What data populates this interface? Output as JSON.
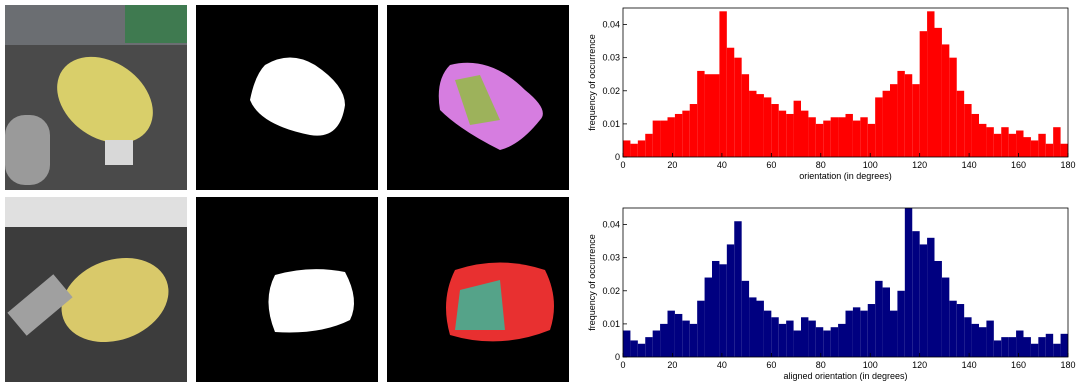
{
  "chart_data": [
    {
      "type": "histogram",
      "xlabel": "orientation (in degrees)",
      "ylabel": "frequency of occurrence",
      "color": "#ff0000",
      "bins": [
        0,
        3,
        6,
        9,
        12,
        15,
        18,
        21,
        24,
        27,
        30,
        33,
        36,
        39,
        42,
        45,
        48,
        51,
        54,
        57,
        60,
        63,
        66,
        69,
        72,
        75,
        78,
        81,
        84,
        87,
        90,
        93,
        96,
        99,
        102,
        105,
        108,
        111,
        114,
        117,
        120,
        123,
        126,
        129,
        132,
        135,
        138,
        141,
        144,
        147,
        150,
        153,
        156,
        159,
        162,
        165,
        168,
        171,
        174,
        177,
        180
      ],
      "values": [
        0.005,
        0.004,
        0.005,
        0.007,
        0.011,
        0.011,
        0.012,
        0.013,
        0.014,
        0.016,
        0.026,
        0.025,
        0.025,
        0.044,
        0.033,
        0.03,
        0.025,
        0.02,
        0.019,
        0.018,
        0.016,
        0.014,
        0.013,
        0.017,
        0.014,
        0.012,
        0.01,
        0.011,
        0.012,
        0.012,
        0.013,
        0.011,
        0.012,
        0.01,
        0.018,
        0.02,
        0.022,
        0.026,
        0.025,
        0.022,
        0.038,
        0.044,
        0.039,
        0.034,
        0.03,
        0.02,
        0.016,
        0.013,
        0.01,
        0.009,
        0.007,
        0.009,
        0.007,
        0.008,
        0.006,
        0.005,
        0.007,
        0.004,
        0.009,
        0.004
      ],
      "xlim": [
        0,
        180
      ],
      "xticks": [
        0,
        20,
        40,
        60,
        80,
        100,
        120,
        140,
        160,
        180
      ],
      "ylim": [
        0,
        0.045
      ],
      "yticks": [
        0,
        0.01,
        0.02,
        0.03,
        0.04
      ]
    },
    {
      "type": "histogram",
      "xlabel": "aligned orientation (in degrees)",
      "ylabel": "frequency of occurrence",
      "color": "#000080",
      "bins": [
        0,
        3,
        6,
        9,
        12,
        15,
        18,
        21,
        24,
        27,
        30,
        33,
        36,
        39,
        42,
        45,
        48,
        51,
        54,
        57,
        60,
        63,
        66,
        69,
        72,
        75,
        78,
        81,
        84,
        87,
        90,
        93,
        96,
        99,
        102,
        105,
        108,
        111,
        114,
        117,
        120,
        123,
        126,
        129,
        132,
        135,
        138,
        141,
        144,
        147,
        150,
        153,
        156,
        159,
        162,
        165,
        168,
        171,
        174,
        177,
        180
      ],
      "values": [
        0.008,
        0.005,
        0.004,
        0.006,
        0.008,
        0.01,
        0.014,
        0.013,
        0.011,
        0.01,
        0.017,
        0.024,
        0.029,
        0.028,
        0.034,
        0.041,
        0.023,
        0.018,
        0.017,
        0.014,
        0.012,
        0.01,
        0.011,
        0.008,
        0.012,
        0.011,
        0.009,
        0.008,
        0.009,
        0.01,
        0.014,
        0.015,
        0.014,
        0.016,
        0.023,
        0.021,
        0.014,
        0.02,
        0.045,
        0.038,
        0.034,
        0.036,
        0.029,
        0.024,
        0.017,
        0.016,
        0.012,
        0.01,
        0.009,
        0.011,
        0.005,
        0.006,
        0.006,
        0.008,
        0.006,
        0.004,
        0.006,
        0.007,
        0.004,
        0.007
      ],
      "xlim": [
        0,
        180
      ],
      "xticks": [
        0,
        20,
        40,
        60,
        80,
        100,
        120,
        140,
        160,
        180
      ],
      "ylim": [
        0,
        0.045
      ],
      "yticks": [
        0,
        0.01,
        0.02,
        0.03,
        0.04
      ]
    }
  ]
}
